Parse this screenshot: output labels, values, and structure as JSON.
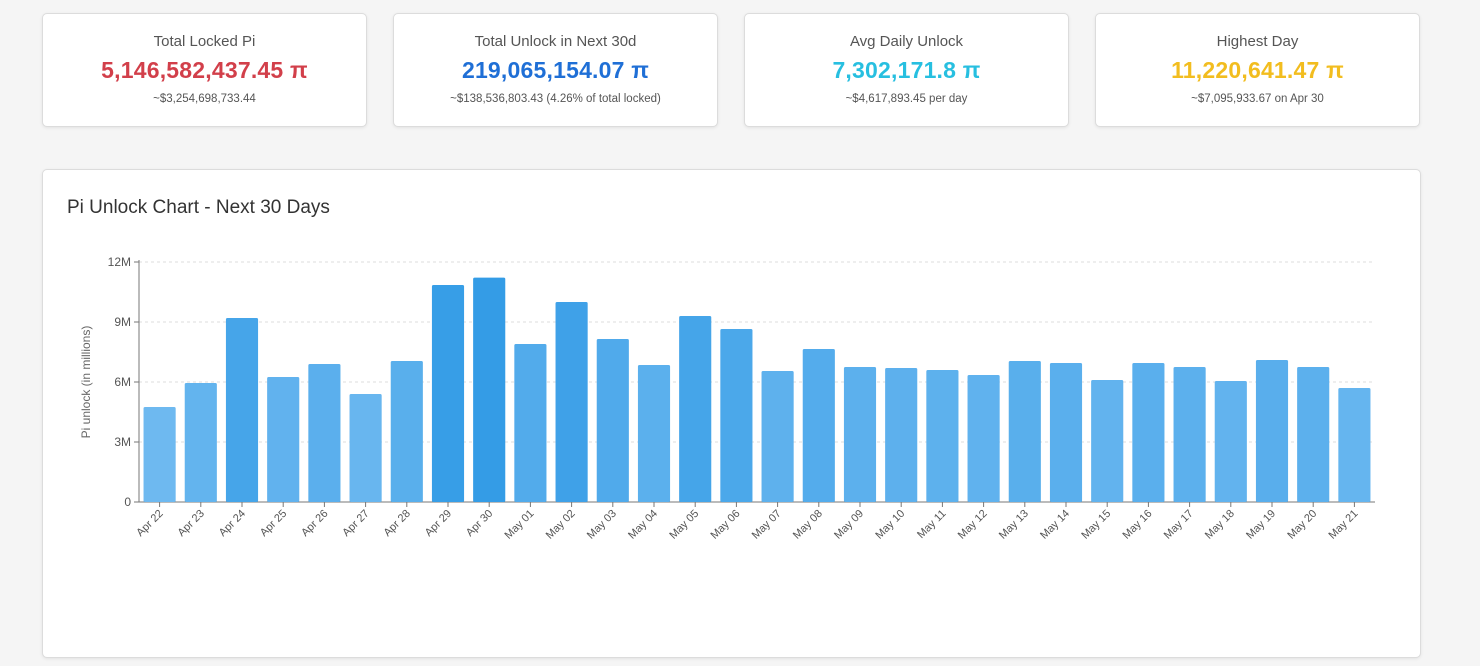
{
  "stats": [
    {
      "label": "Total Locked Pi",
      "value": "5,146,582,437.45 π",
      "sub": "~$3,254,698,733.44",
      "color": "#d23f4a"
    },
    {
      "label": "Total Unlock in Next 30d",
      "value": "219,065,154.07 π",
      "sub": "~$138,536,803.43 (4.26% of total locked)",
      "color": "#1f6fd6"
    },
    {
      "label": "Avg Daily Unlock",
      "value": "7,302,171.8 π",
      "sub": "~$4,617,893.45 per day",
      "color": "#27bfe0"
    },
    {
      "label": "Highest Day",
      "value": "11,220,641.47 π",
      "sub": "~$7,095,933.67 on Apr 30",
      "color": "#f2bd1f"
    }
  ],
  "chart": {
    "title": "Pi Unlock Chart - Next 30 Days"
  },
  "chart_data": {
    "type": "bar",
    "title": "Pi Unlock Chart - Next 30 Days",
    "xlabel": "",
    "ylabel": "Pi unlock (in millions)",
    "ylim": [
      0,
      12000000
    ],
    "yticks": [
      "0",
      "3M",
      "6M",
      "9M",
      "12M"
    ],
    "grid": true,
    "categories": [
      "Apr 22",
      "Apr 23",
      "Apr 24",
      "Apr 25",
      "Apr 26",
      "Apr 27",
      "Apr 28",
      "Apr 29",
      "Apr 30",
      "May 01",
      "May 02",
      "May 03",
      "May 04",
      "May 05",
      "May 06",
      "May 07",
      "May 08",
      "May 09",
      "May 10",
      "May 11",
      "May 12",
      "May 13",
      "May 14",
      "May 15",
      "May 16",
      "May 17",
      "May 18",
      "May 19",
      "May 20",
      "May 21"
    ],
    "values": [
      4750000,
      5950000,
      9200000,
      6250000,
      6900000,
      5400000,
      7050000,
      10850000,
      11220641.47,
      7900000,
      10000000,
      8150000,
      6850000,
      9300000,
      8650000,
      6550000,
      7650000,
      6750000,
      6700000,
      6600000,
      6350000,
      7050000,
      6950000,
      6100000,
      6950000,
      6750000,
      6050000,
      7100000,
      6750000,
      5700000
    ]
  }
}
